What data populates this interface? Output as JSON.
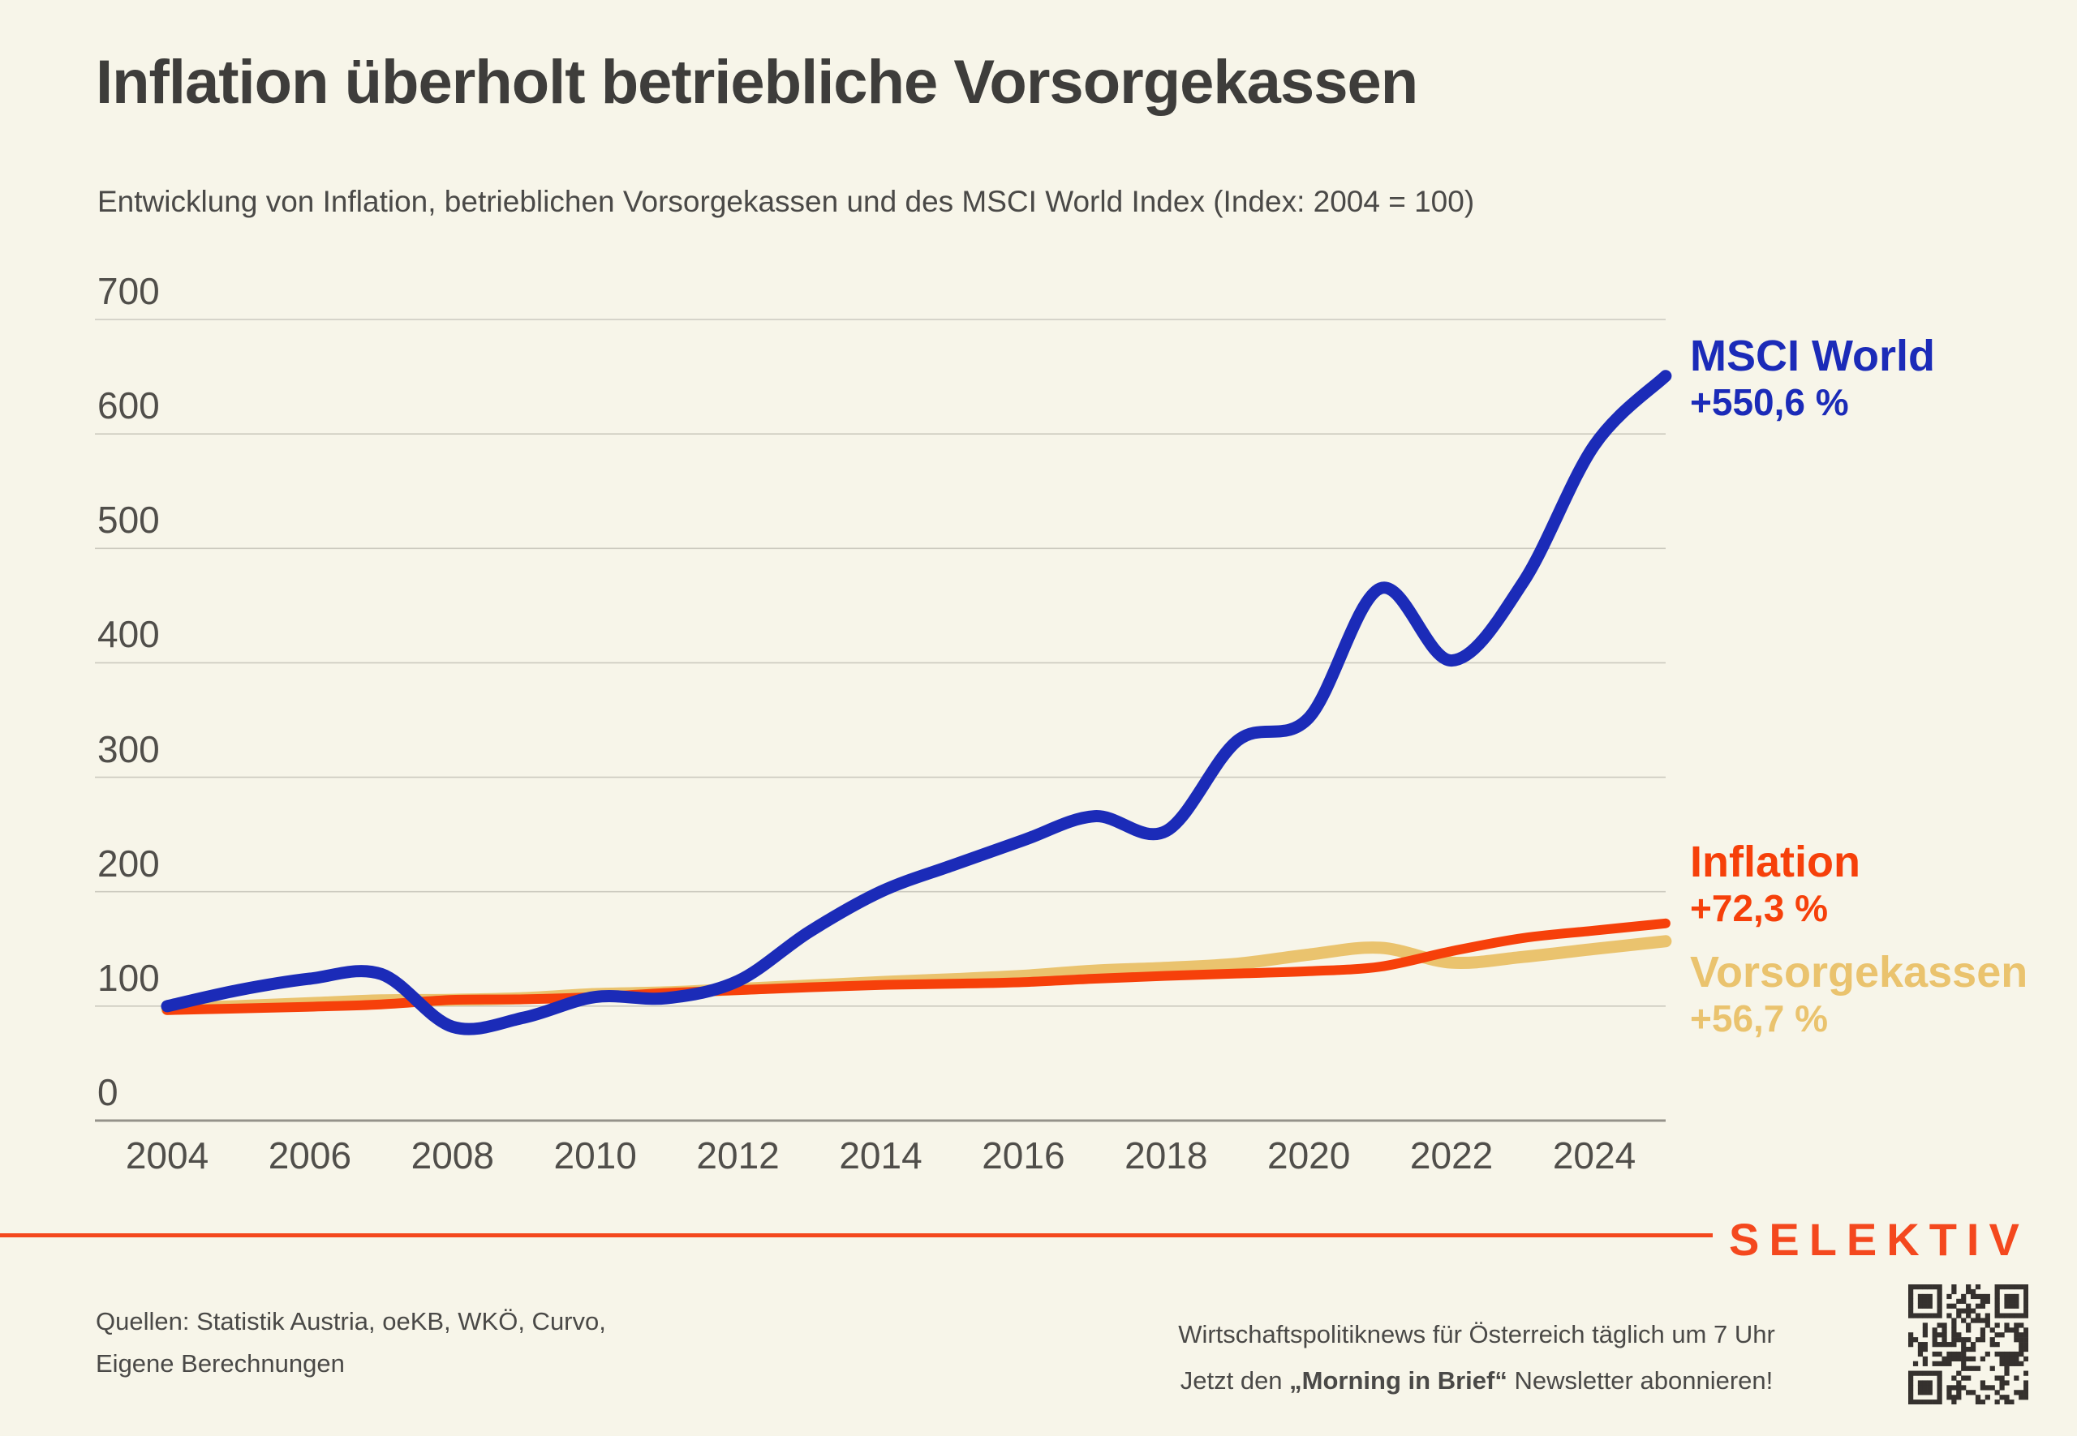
{
  "header": {
    "title": "Inflation überholt betriebliche Vorsorgekassen",
    "subtitle": "Entwicklung von Inflation, betrieblichen Vorsorgekassen und des MSCI World Index (Index: 2004 = 100)"
  },
  "chart_data": {
    "type": "line",
    "title": "Inflation überholt betriebliche Vorsorgekassen",
    "subtitle": "Entwicklung von Inflation, betrieblichen Vorsorgekassen und des MSCI World Index (Index: 2004 = 100)",
    "index_base": "2004 = 100",
    "x": [
      2004,
      2005,
      2006,
      2007,
      2008,
      2009,
      2010,
      2011,
      2012,
      2013,
      2014,
      2015,
      2016,
      2017,
      2018,
      2019,
      2020,
      2021,
      2022,
      2023,
      2024,
      2025
    ],
    "x_ticks": [
      2004,
      2006,
      2008,
      2010,
      2012,
      2014,
      2016,
      2018,
      2020,
      2022,
      2024
    ],
    "y_ticks": [
      0,
      100,
      200,
      300,
      400,
      500,
      600,
      700
    ],
    "ylim": [
      0,
      700
    ],
    "grid": true,
    "legend_position": "right-inline",
    "series": [
      {
        "name": "Vorsorgekassen",
        "delta_label": "+56,7 %",
        "color": "#EAC36E",
        "final_value": 156.7,
        "stroke_width": 15,
        "values": [
          97.5,
          100,
          102.5,
          105,
          105.5,
          107,
          110.5,
          112,
          115,
          118,
          121,
          123.5,
          126.5,
          131,
          133.5,
          137,
          145,
          151,
          138,
          143,
          150,
          156.7
        ]
      },
      {
        "name": "Inflation",
        "delta_label": "+72,3 %",
        "color": "#F6400A",
        "final_value": 172.3,
        "stroke_width": 12,
        "values": [
          96.5,
          98,
          99.5,
          101.5,
          105.5,
          106,
          108,
          111.5,
          114,
          116.5,
          118.5,
          119.5,
          121,
          124,
          126.5,
          128.5,
          130.5,
          134.5,
          148,
          159.5,
          166,
          172.3
        ]
      },
      {
        "name": "MSCI World",
        "delta_label": "+550,6 %",
        "color": "#1B2BB8",
        "final_value": 650.6,
        "stroke_width": 15,
        "values": [
          100,
          114,
          124,
          128,
          82,
          90,
          108,
          107,
          122,
          165,
          200,
          223,
          245,
          266,
          253,
          332,
          352,
          465,
          402,
          470,
          590,
          650.6
        ]
      }
    ]
  },
  "colors": {
    "background": "#F7F5E9",
    "title_text": "#3E3D3B",
    "body_text": "#4A4947",
    "axis_text": "#504E4A",
    "gridline": "#CCCABF",
    "axis_line": "#95928A",
    "accent": "#F4481E",
    "qr_dark": "#35312E"
  },
  "footer": {
    "sources_line1": "Quellen: Statistik Austria, oeKB, WKÖ, Curvo,",
    "sources_line2": "Eigene Berechnungen",
    "logo": "SELEKTIV",
    "newsletter_line1": "Wirtschaftspolitiknews für Österreich täglich um 7 Uhr",
    "newsletter_line2_prefix": "Jetzt den ",
    "newsletter_line2_bold": "„Morning in Brief“",
    "newsletter_line2_suffix": " Newsletter abonnieren!"
  }
}
